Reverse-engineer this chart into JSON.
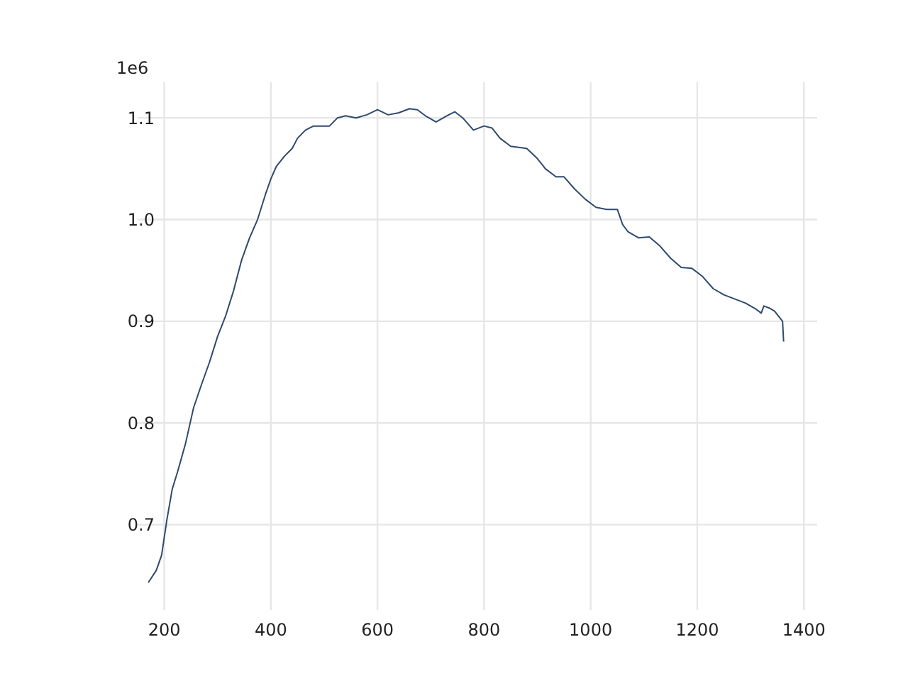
{
  "chart_data": {
    "type": "line",
    "x": [
      170,
      185,
      195,
      205,
      215,
      225,
      240,
      255,
      270,
      285,
      300,
      315,
      330,
      345,
      360,
      375,
      390,
      400,
      410,
      425,
      440,
      450,
      465,
      480,
      500,
      510,
      525,
      540,
      560,
      580,
      600,
      620,
      640,
      660,
      675,
      690,
      710,
      730,
      745,
      760,
      780,
      800,
      815,
      830,
      850,
      880,
      900,
      915,
      935,
      950,
      970,
      990,
      1010,
      1030,
      1050,
      1060,
      1070,
      1090,
      1110,
      1130,
      1150,
      1170,
      1190,
      1210,
      1230,
      1250,
      1270,
      1290,
      1310,
      1320,
      1325,
      1335,
      1345,
      1360,
      1362
    ],
    "series": [
      {
        "color": "#2e4a6e",
        "values": [
          0.643,
          0.655,
          0.67,
          0.705,
          0.735,
          0.752,
          0.78,
          0.815,
          0.838,
          0.86,
          0.885,
          0.905,
          0.93,
          0.96,
          0.982,
          1.0,
          1.025,
          1.04,
          1.052,
          1.062,
          1.07,
          1.08,
          1.088,
          1.092,
          1.092,
          1.092,
          1.1,
          1.102,
          1.1,
          1.103,
          1.108,
          1.103,
          1.105,
          1.109,
          1.108,
          1.102,
          1.096,
          1.102,
          1.106,
          1.1,
          1.088,
          1.092,
          1.09,
          1.08,
          1.072,
          1.07,
          1.06,
          1.05,
          1.042,
          1.042,
          1.03,
          1.02,
          1.012,
          1.01,
          1.01,
          0.995,
          0.988,
          0.982,
          0.983,
          0.974,
          0.962,
          0.953,
          0.952,
          0.944,
          0.932,
          0.926,
          0.922,
          0.918,
          0.912,
          0.908,
          0.915,
          0.913,
          0.91,
          0.9,
          0.88
        ]
      }
    ],
    "xlim": [
      150,
      1425
    ],
    "ylim": [
      0.616,
      1.135
    ],
    "xticks": [
      200,
      400,
      600,
      800,
      1000,
      1200,
      1400
    ],
    "yticks": [
      0.7,
      0.8,
      0.9,
      {
        "value": 1.0,
        "label": "1.0"
      },
      1.1
    ],
    "ylabel": "1e6",
    "grid": true,
    "line_style": "solid"
  }
}
